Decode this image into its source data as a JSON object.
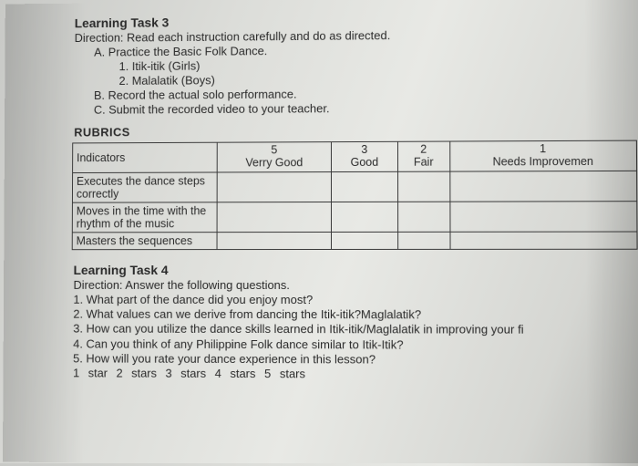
{
  "task3": {
    "title": "Learning Task 3",
    "direction": "Direction: Read each instruction carefully and do as directed.",
    "a": "A. Practice the Basic Folk Dance.",
    "a1": "1. Itik-itik (Girls)",
    "a2": "2. Malalatik (Boys)",
    "b": "B. Record the actual solo performance.",
    "c": "C. Submit the recorded video to your teacher."
  },
  "rubrics": {
    "title": "RUBRICS",
    "headers": {
      "indicators": "Indicators",
      "c5top": "5",
      "c5bot": "Verry Good",
      "c3top": "3",
      "c3bot": "Good",
      "c2top": "2",
      "c2bot": "Fair",
      "c1top": "1",
      "c1bot": "Needs Improvemen"
    },
    "rows": {
      "r1": "Executes the dance steps correctly",
      "r2": "Moves in the time with the rhythm of the music",
      "r3": "Masters the sequences"
    }
  },
  "task4": {
    "title": "Learning Task 4",
    "direction": "Direction: Answer the following questions.",
    "q1": "1. What part of the dance did you enjoy most?",
    "q2": "2. What values can we derive from dancing the Itik-itik?Maglalatik?",
    "q3": "3. How can you utilize the dance skills learned in Itik-itik/Maglalatik in improving your fi",
    "q4": "4. Can you think of any Philippine Folk dance similar to Itik-Itik?",
    "q5": "5. How will you rate your dance experience in this lesson?",
    "stars": "1 star   2 stars   3 stars   4 stars   5 stars"
  }
}
